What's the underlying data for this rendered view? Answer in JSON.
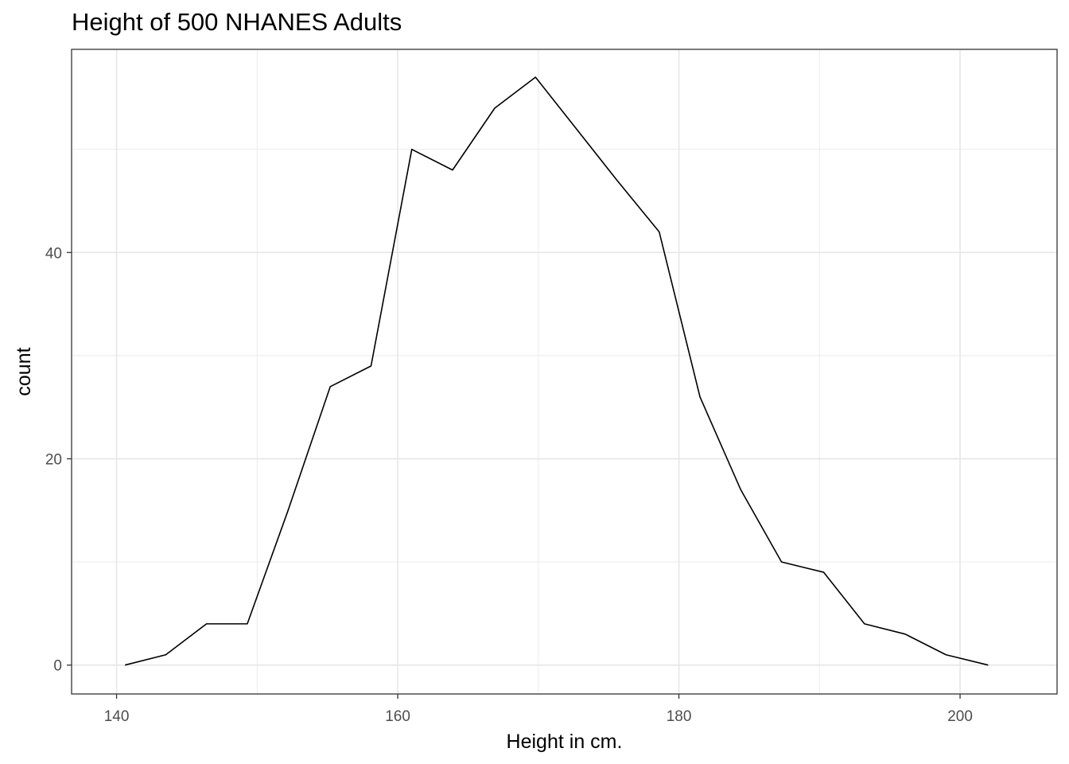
{
  "chart_data": {
    "type": "line",
    "title": "Height of 500 NHANES Adults",
    "xlabel": "Height in cm.",
    "ylabel": "count",
    "xlim": [
      136.8,
      206.9
    ],
    "ylim": [
      -2.8,
      59.7
    ],
    "x_ticks": [
      140,
      160,
      180,
      200
    ],
    "y_ticks": [
      0,
      20,
      40
    ],
    "x_minor": [
      150,
      170,
      190
    ],
    "y_minor": [
      10,
      30,
      50
    ],
    "grid": true,
    "legend": "none",
    "line_color": "#000000",
    "series": [
      {
        "x": [
          140.6,
          143.5,
          146.4,
          149.3,
          152.2,
          155.2,
          158.1,
          161.0,
          163.9,
          166.9,
          169.8,
          172.7,
          175.6,
          178.6,
          181.5,
          184.4,
          187.3,
          190.3,
          193.2,
          196.1,
          199.0,
          202.0
        ],
        "values": [
          0,
          1,
          4,
          4,
          15,
          27,
          29,
          50,
          48,
          54,
          57,
          52,
          47,
          42,
          26,
          17,
          10,
          9,
          4,
          3,
          1,
          0
        ]
      }
    ]
  }
}
